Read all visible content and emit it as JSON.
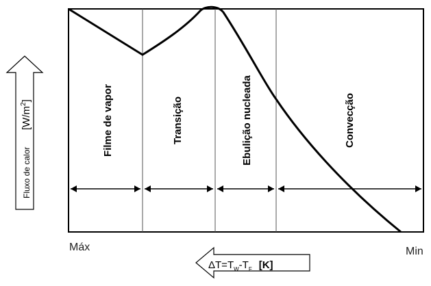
{
  "y_axis": {
    "label": "Fluxo de calor",
    "unit_prefix": "[W/m",
    "unit_exp": "2",
    "unit_suffix": "]"
  },
  "x_axis": {
    "label_prefix": "ΔT=T",
    "sub_w": "W",
    "label_mid": "-T",
    "sub_f": "F",
    "unit": "[K]",
    "left_end": "Máx",
    "right_end": "Min"
  },
  "regions": [
    {
      "id": "film",
      "label": "Filme de vapor"
    },
    {
      "id": "transition",
      "label": "Transição"
    },
    {
      "id": "nucleate",
      "label": "Ebulição nucleada"
    },
    {
      "id": "convection",
      "label": "Convecção"
    }
  ],
  "colors": {
    "line": "#000000",
    "frame": "#000000",
    "divider": "#555555"
  },
  "icons": {
    "y_arrow": "arrow-up-outline-icon",
    "x_arrow": "arrow-left-outline-icon",
    "span_arrows": "double-headed-arrow-icon"
  }
}
